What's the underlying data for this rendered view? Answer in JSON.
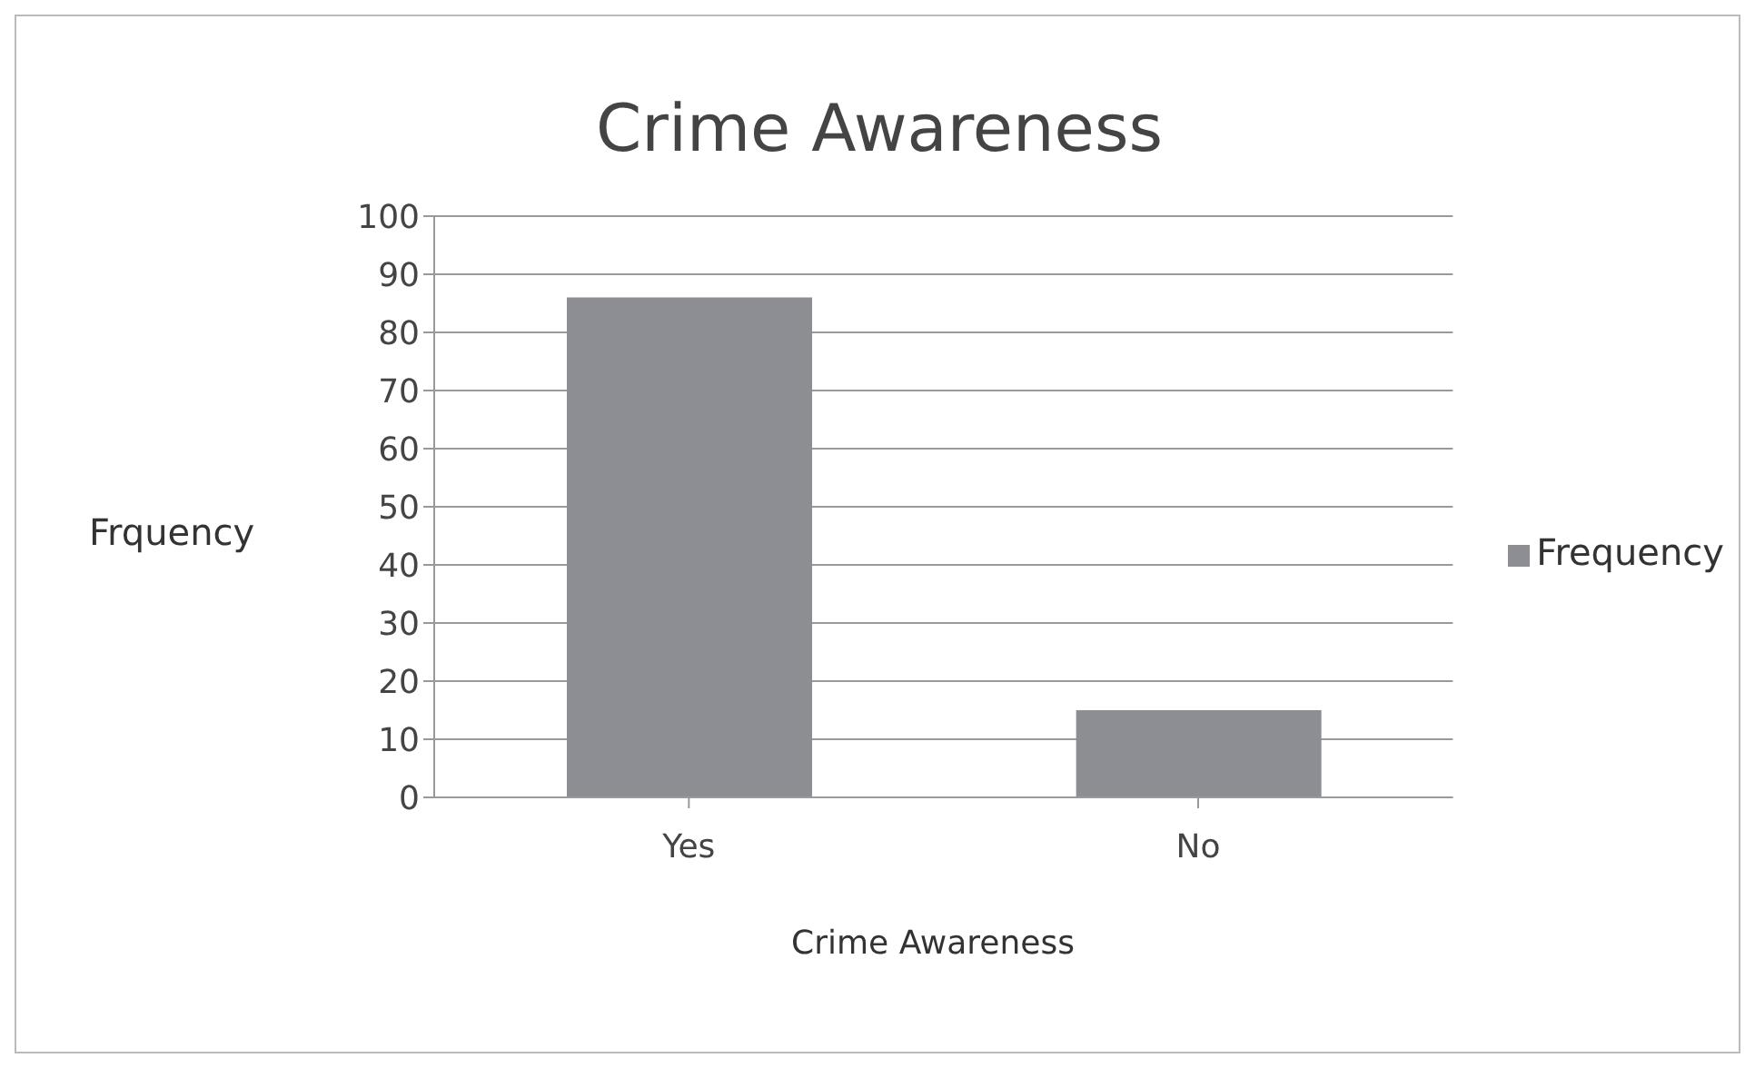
{
  "chart_data": {
    "type": "bar",
    "title": "Crime  Awareness",
    "xlabel": "Crime Awareness",
    "ylabel": "Frquency",
    "categories": [
      "Yes",
      "No"
    ],
    "series": [
      {
        "name": "Frequency",
        "color": "#8c8e94",
        "values": [
          86,
          15
        ]
      }
    ],
    "ylim": [
      0,
      100
    ],
    "yticks": [
      0,
      10,
      20,
      30,
      40,
      50,
      60,
      70,
      80,
      90,
      100
    ],
    "grid": "y",
    "legend": "right"
  }
}
